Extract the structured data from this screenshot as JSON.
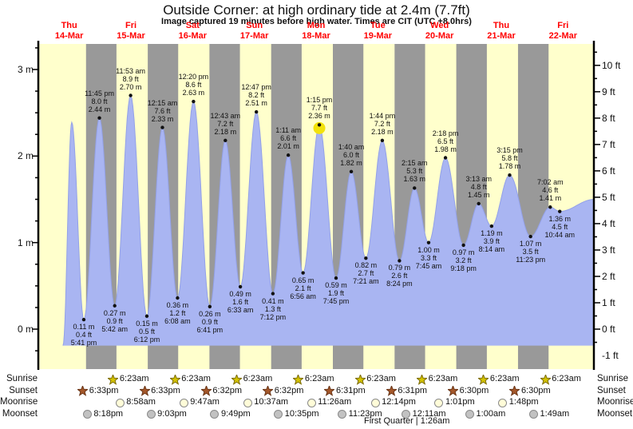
{
  "title": "Outside Corner: at high  ordinary tide at 2.4m (7.7ft)",
  "subtitle": "Image captured 19 minutes before high water. Times are CIT (UTC +8.0hrs)",
  "chart_data": {
    "type": "area",
    "title": "Outside Corner: at high  ordinary tide at 2.4m (7.7ft)",
    "ylabel_left_unit": "m",
    "ylabel_right_unit": "ft",
    "y_ticks_m": [
      0,
      1,
      2,
      3
    ],
    "y_ticks_ft": [
      -1,
      0,
      1,
      2,
      3,
      4,
      5,
      6,
      7,
      8,
      9,
      10
    ],
    "ylim_m": [
      -0.46,
      3.28
    ],
    "x_range_hours": [
      0,
      216
    ],
    "grid": false,
    "legend": "none",
    "colors": {
      "day": "#ffffcc",
      "night": "#999999",
      "fill": "#a9b5f2",
      "stroke": "#93a1e8",
      "label_red": "#ff0000",
      "sun_marker": "#f2e20a"
    },
    "days": [
      {
        "dow": "Thu",
        "date": "14-Mar"
      },
      {
        "dow": "Fri",
        "date": "15-Mar"
      },
      {
        "dow": "Sat",
        "date": "16-Mar"
      },
      {
        "dow": "Sun",
        "date": "17-Mar"
      },
      {
        "dow": "Mon",
        "date": "18-Mar"
      },
      {
        "dow": "Tue",
        "date": "19-Mar"
      },
      {
        "dow": "Wed",
        "date": "20-Mar"
      },
      {
        "dow": "Thu",
        "date": "21-Mar"
      },
      {
        "dow": "Fri",
        "date": "22-Mar"
      }
    ],
    "points": [
      {
        "t": 9.6,
        "m": -0.19,
        "kind": "start"
      },
      {
        "t": 13.0,
        "m": 2.39,
        "kind": "high"
      },
      {
        "t": 17.68,
        "m": 0.11,
        "ft": 0.4,
        "time": "5:41 pm",
        "kind": "low",
        "labeled": true
      },
      {
        "t": 23.75,
        "m": 2.44,
        "ft": 8.0,
        "time": "11:45 pm",
        "kind": "high",
        "labeled": true
      },
      {
        "t": 29.7,
        "m": 0.27,
        "ft": 0.9,
        "time": "5:42 am",
        "kind": "low",
        "labeled": true
      },
      {
        "t": 35.88,
        "m": 2.7,
        "ft": 8.9,
        "time": "11:53 am",
        "kind": "high",
        "labeled": true
      },
      {
        "t": 42.2,
        "m": 0.15,
        "ft": 0.5,
        "time": "6:12 pm",
        "kind": "low",
        "labeled": true
      },
      {
        "t": 48.25,
        "m": 2.33,
        "ft": 7.6,
        "time": "12:15 am",
        "kind": "high",
        "labeled": true
      },
      {
        "t": 54.13,
        "m": 0.36,
        "ft": 1.2,
        "time": "6:08 am",
        "kind": "low",
        "labeled": true
      },
      {
        "t": 60.33,
        "m": 2.63,
        "ft": 8.6,
        "time": "12:20 pm",
        "kind": "high",
        "labeled": true
      },
      {
        "t": 66.68,
        "m": 0.26,
        "ft": 0.9,
        "time": "6:41 pm",
        "kind": "low",
        "labeled": true
      },
      {
        "t": 72.72,
        "m": 2.18,
        "ft": 7.2,
        "time": "12:43 am",
        "kind": "high",
        "labeled": true
      },
      {
        "t": 78.55,
        "m": 0.49,
        "ft": 1.6,
        "time": "6:33 am",
        "kind": "low",
        "labeled": true
      },
      {
        "t": 84.78,
        "m": 2.51,
        "ft": 8.2,
        "time": "12:47 pm",
        "kind": "high",
        "labeled": true
      },
      {
        "t": 91.2,
        "m": 0.41,
        "ft": 1.3,
        "time": "7:12 pm",
        "kind": "low",
        "labeled": true
      },
      {
        "t": 97.18,
        "m": 2.01,
        "ft": 6.6,
        "time": "1:11 am",
        "kind": "high",
        "labeled": true
      },
      {
        "t": 102.93,
        "m": 0.65,
        "ft": 2.1,
        "time": "6:56 am",
        "kind": "low",
        "labeled": true
      },
      {
        "t": 109.25,
        "m": 2.36,
        "ft": 7.7,
        "time": "1:15 pm",
        "kind": "high",
        "labeled": true,
        "marker": "sun"
      },
      {
        "t": 115.75,
        "m": 0.59,
        "ft": 1.9,
        "time": "7:45 pm",
        "kind": "low",
        "labeled": true
      },
      {
        "t": 121.67,
        "m": 1.82,
        "ft": 6.0,
        "time": "1:40 am",
        "kind": "high",
        "labeled": true
      },
      {
        "t": 127.35,
        "m": 0.82,
        "ft": 2.7,
        "time": "7:21 am",
        "kind": "low",
        "labeled": true
      },
      {
        "t": 133.73,
        "m": 2.18,
        "ft": 7.2,
        "time": "1:44 pm",
        "kind": "high",
        "labeled": true
      },
      {
        "t": 140.4,
        "m": 0.79,
        "ft": 2.6,
        "time": "8:24 pm",
        "kind": "low",
        "labeled": true
      },
      {
        "t": 146.25,
        "m": 1.63,
        "ft": 5.3,
        "time": "2:15 am",
        "kind": "high",
        "labeled": true
      },
      {
        "t": 151.75,
        "m": 1.0,
        "ft": 3.3,
        "time": "7:45 am",
        "kind": "low",
        "labeled": true
      },
      {
        "t": 158.3,
        "m": 1.98,
        "ft": 6.5,
        "time": "2:18 pm",
        "kind": "high",
        "labeled": true
      },
      {
        "t": 165.3,
        "m": 0.97,
        "ft": 3.2,
        "time": "9:18 pm",
        "kind": "low",
        "labeled": true
      },
      {
        "t": 171.22,
        "m": 1.45,
        "ft": 4.8,
        "time": "3:13 am",
        "kind": "high",
        "labeled": true
      },
      {
        "t": 176.23,
        "m": 1.19,
        "ft": 3.9,
        "time": "8:14 am",
        "kind": "low",
        "labeled": true
      },
      {
        "t": 183.25,
        "m": 1.78,
        "ft": 5.8,
        "time": "3:15 pm",
        "kind": "high",
        "labeled": true
      },
      {
        "t": 191.38,
        "m": 1.07,
        "ft": 3.5,
        "time": "11:23 pm",
        "kind": "low",
        "labeled": true
      },
      {
        "t": 199.03,
        "m": 1.41,
        "ft": 4.6,
        "time": "7:02 am",
        "kind": "high",
        "labeled": true
      },
      {
        "t": 202.73,
        "m": 1.36,
        "ft": 4.5,
        "time": "10:44 am",
        "kind": "low",
        "labeled": true
      },
      {
        "t": 216,
        "m": 1.5,
        "kind": "end"
      }
    ]
  },
  "astro": {
    "left_labels": [
      "Sunrise",
      "Sunset",
      "Moonrise",
      "Moonset"
    ],
    "right_labels": [
      "Sunrise",
      "Sunset",
      "Moonrise",
      "Moonset"
    ],
    "rows": [
      {
        "name": "sunrise",
        "icon": "sunrise-star-icon",
        "events": [
          {
            "time": "6:23am",
            "t": 30.383
          },
          {
            "time": "6:23am",
            "t": 54.383
          },
          {
            "time": "6:23am",
            "t": 78.383
          },
          {
            "time": "6:23am",
            "t": 102.383
          },
          {
            "time": "6:23am",
            "t": 126.383
          },
          {
            "time": "6:23am",
            "t": 150.383
          },
          {
            "time": "6:23am",
            "t": 174.383
          },
          {
            "time": "6:23am",
            "t": 198.383
          }
        ]
      },
      {
        "name": "sunset",
        "icon": "sunset-star-icon",
        "events": [
          {
            "time": "6:33pm",
            "t": 18.55
          },
          {
            "time": "6:33pm",
            "t": 42.55
          },
          {
            "time": "6:32pm",
            "t": 66.533
          },
          {
            "time": "6:32pm",
            "t": 90.533
          },
          {
            "time": "6:31pm",
            "t": 114.517
          },
          {
            "time": "6:31pm",
            "t": 138.517
          },
          {
            "time": "6:30pm",
            "t": 162.5
          },
          {
            "time": "6:30pm",
            "t": 186.5
          }
        ]
      },
      {
        "name": "moonrise",
        "icon": "moonrise-icon",
        "events": [
          {
            "time": "8:58am",
            "t": 32.967
          },
          {
            "time": "9:47am",
            "t": 57.783
          },
          {
            "time": "10:37am",
            "t": 82.617
          },
          {
            "time": "11:26am",
            "t": 107.433
          },
          {
            "time": "12:14pm",
            "t": 132.233
          },
          {
            "time": "1:01pm",
            "t": 157.017
          },
          {
            "time": "1:48pm",
            "t": 181.8
          }
        ]
      },
      {
        "name": "moonset",
        "icon": "moonset-icon",
        "events": [
          {
            "time": "8:18pm",
            "t": 20.3
          },
          {
            "time": "9:03pm",
            "t": 45.05
          },
          {
            "time": "9:49pm",
            "t": 69.817
          },
          {
            "time": "10:35pm",
            "t": 94.583
          },
          {
            "time": "11:23pm",
            "t": 119.383
          },
          {
            "time": "12:11am",
            "t": 144.183
          },
          {
            "time": "1:00am",
            "t": 169.0
          },
          {
            "time": "1:49am",
            "t": 193.817
          }
        ]
      }
    ],
    "moon_phase": "First Quarter | 1:26am"
  }
}
